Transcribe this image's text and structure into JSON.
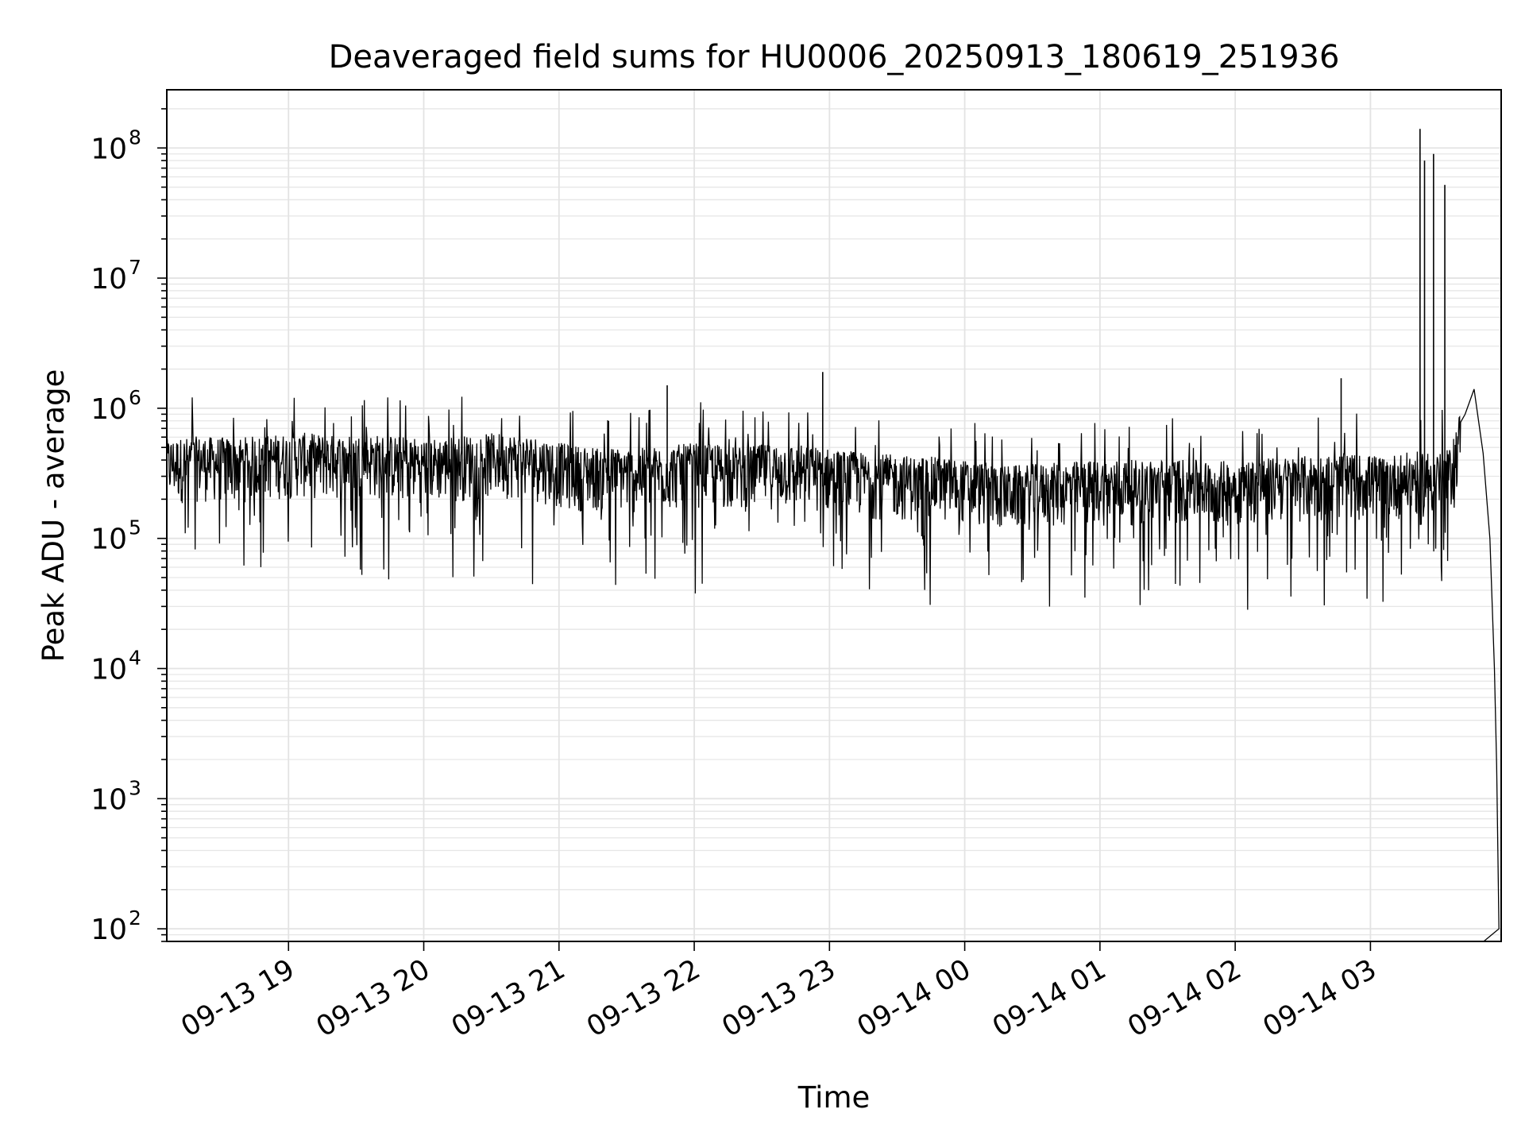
{
  "chart_data": {
    "type": "line",
    "title": "Deaveraged field sums for HU0006_20250913_180619_251936",
    "xlabel": "Time",
    "ylabel": "Peak ADU - average",
    "yscale": "log",
    "ylim": [
      80,
      280000000
    ],
    "xlim": [
      "09-13 18:06",
      "09-14 03:58"
    ],
    "grid": true,
    "line_color": "#000000",
    "x_ticks": [
      "09-13 19",
      "09-13 20",
      "09-13 21",
      "09-13 22",
      "09-13 23",
      "09-14 00",
      "09-14 01",
      "09-14 02",
      "09-14 03"
    ],
    "y_ticks": [
      {
        "base": "10",
        "exp": "2"
      },
      {
        "base": "10",
        "exp": "3"
      },
      {
        "base": "10",
        "exp": "4"
      },
      {
        "base": "10",
        "exp": "5"
      },
      {
        "base": "10",
        "exp": "6"
      },
      {
        "base": "10",
        "exp": "7"
      },
      {
        "base": "10",
        "exp": "8"
      }
    ],
    "series": [
      {
        "x": [
          "09-13 18:06",
          "09-13 18:20",
          "09-13 18:35",
          "09-13 18:50",
          "09-13 19:05",
          "09-13 19:20",
          "09-13 19:35",
          "09-13 19:50",
          "09-13 20:05",
          "09-13 20:20",
          "09-13 20:35",
          "09-13 20:50",
          "09-13 21:05",
          "09-13 21:20",
          "09-13 21:35",
          "09-13 21:50",
          "09-13 22:05",
          "09-13 22:20",
          "09-13 22:35",
          "09-13 22:50",
          "09-13 23:05",
          "09-13 23:20",
          "09-13 23:35",
          "09-13 23:50",
          "09-14 00:05",
          "09-14 00:20",
          "09-14 00:35",
          "09-14 00:50",
          "09-14 01:05",
          "09-14 01:20",
          "09-14 01:35",
          "09-14 01:50",
          "09-14 02:05",
          "09-14 02:20",
          "09-14 02:35",
          "09-14 02:50",
          "09-14 03:05",
          "09-14 03:20",
          "09-14 03:35",
          "09-14 03:42",
          "09-14 03:46",
          "09-14 03:50",
          "09-14 03:53",
          "09-14 03:55",
          "09-14 03:56",
          "09-14 03:57"
        ],
        "y": [
          400000,
          420000,
          410000,
          430000,
          450000,
          430000,
          440000,
          420000,
          410000,
          430000,
          450000,
          420000,
          360000,
          350000,
          340000,
          360000,
          380000,
          350000,
          370000,
          360000,
          330000,
          310000,
          300000,
          290000,
          270000,
          250000,
          260000,
          270000,
          280000,
          275000,
          285000,
          270000,
          280000,
          290000,
          300000,
          310000,
          300000,
          320000,
          330000,
          900000,
          1400000,
          450000,
          100000,
          10000,
          1800,
          100
        ]
      }
    ],
    "spikes": [
      {
        "x": "09-14 03:22",
        "y": 140000000
      },
      {
        "x": "09-14 03:24",
        "y": 80000000
      },
      {
        "x": "09-14 03:28",
        "y": 90000000
      },
      {
        "x": "09-14 03:33",
        "y": 52000000
      },
      {
        "x": "09-13 22:57",
        "y": 1900000
      },
      {
        "x": "09-13 21:48",
        "y": 1500000
      },
      {
        "x": "09-14 02:47",
        "y": 1700000
      }
    ]
  }
}
